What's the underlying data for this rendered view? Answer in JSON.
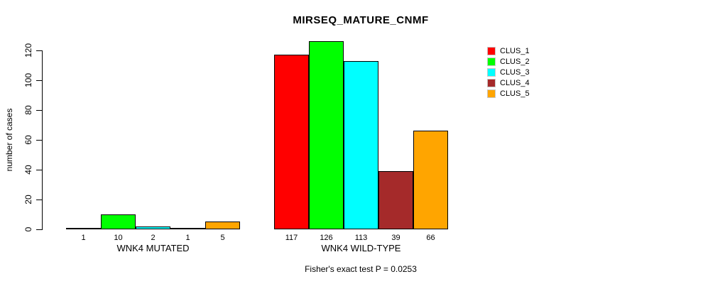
{
  "title": "MIRSEQ_MATURE_CNMF",
  "colors": {
    "background": "#FFFFFF",
    "axis": "#000000",
    "bar_border": "#000000",
    "clus_1": "#FF0000",
    "clus_2": "#00FF00",
    "clus_3": "#00FFFF",
    "clus_4": "#A52A2A",
    "clus_5": "#FFA500"
  },
  "chart_data": {
    "type": "bar",
    "title": "MIRSEQ_MATURE_CNMF",
    "xlabel": "",
    "ylabel": "number of cases",
    "ylim": [
      0,
      120
    ],
    "yticks": [
      0,
      20,
      40,
      60,
      80,
      100,
      120
    ],
    "grid": false,
    "legend_position": "top-right",
    "categories": [
      "WNK4 MUTATED",
      "WNK4 WILD-TYPE"
    ],
    "series": [
      {
        "name": "CLUS_1",
        "color": "#FF0000",
        "values": [
          1,
          117
        ]
      },
      {
        "name": "CLUS_2",
        "color": "#00FF00",
        "values": [
          10,
          126
        ]
      },
      {
        "name": "CLUS_3",
        "color": "#00FFFF",
        "values": [
          2,
          113
        ]
      },
      {
        "name": "CLUS_4",
        "color": "#A52A2A",
        "values": [
          1,
          39
        ]
      },
      {
        "name": "CLUS_5",
        "color": "#FFA500",
        "values": [
          5,
          66
        ]
      }
    ],
    "bar_value_labels_shown": true,
    "annotation": "Fisher's exact test P = 0.0253"
  }
}
